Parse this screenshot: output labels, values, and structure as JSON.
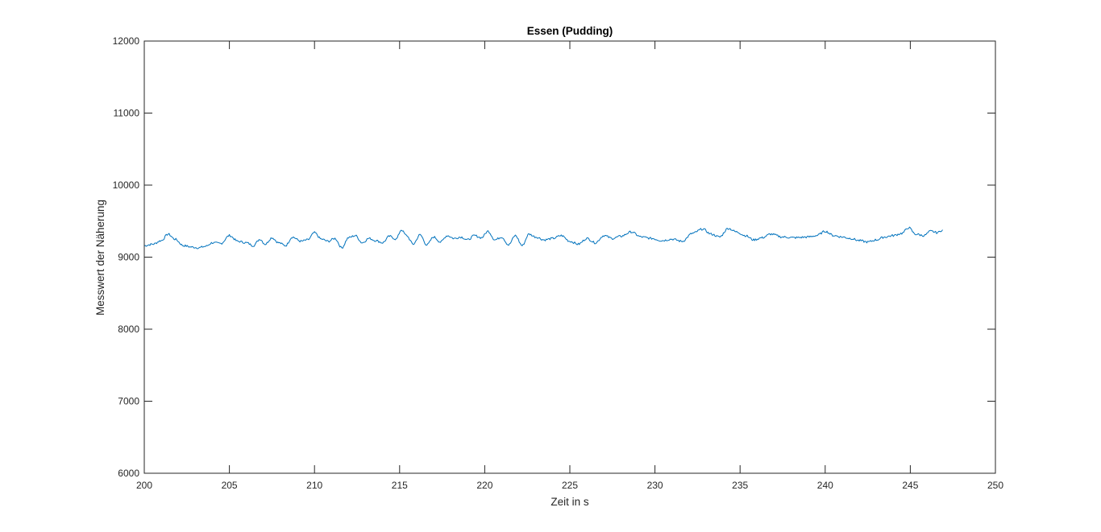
{
  "chart_data": {
    "type": "line",
    "title": "Essen (Pudding)",
    "xlabel": "Zeit in s",
    "ylabel": "Messwert der Näherung",
    "xlim": [
      200,
      250
    ],
    "ylim": [
      6000,
      12000
    ],
    "xticks": [
      200,
      205,
      210,
      215,
      220,
      225,
      230,
      235,
      240,
      245,
      250
    ],
    "yticks": [
      6000,
      7000,
      8000,
      9000,
      10000,
      11000,
      12000
    ],
    "grid": false,
    "legend": "none",
    "line_color": "#0072BD",
    "series": [
      {
        "x": [
          200.0,
          200.5,
          201.0,
          201.4,
          201.8,
          202.3,
          202.8,
          203.2,
          203.6,
          204.0,
          204.5,
          205.0,
          205.5,
          206.0,
          206.4,
          206.8,
          207.1,
          207.5,
          207.9,
          208.3,
          208.7,
          209.2,
          209.6,
          210.0,
          210.4,
          210.8,
          211.2,
          211.6,
          212.0,
          212.4,
          212.8,
          213.2,
          213.6,
          214.0,
          214.4,
          214.8,
          215.1,
          215.4,
          215.8,
          216.2,
          216.6,
          217.0,
          217.4,
          217.8,
          218.2,
          218.6,
          219.0,
          219.4,
          219.8,
          220.2,
          220.6,
          221.0,
          221.4,
          221.8,
          222.2,
          222.6,
          223.0,
          223.5,
          224.0,
          224.5,
          225.0,
          225.5,
          226.0,
          226.5,
          227.0,
          227.5,
          228.0,
          228.6,
          229.2,
          229.8,
          230.4,
          231.0,
          231.6,
          232.2,
          232.8,
          233.3,
          233.8,
          234.3,
          234.8,
          235.3,
          235.8,
          236.3,
          236.8,
          237.5,
          238.2,
          239.0,
          239.5,
          240.0,
          240.5,
          241.0,
          241.5,
          242.0,
          242.5,
          243.0,
          243.5,
          244.0,
          244.5,
          244.9,
          245.3,
          245.8,
          246.2,
          246.6,
          246.9
        ],
        "y": [
          9160,
          9180,
          9230,
          9320,
          9250,
          9160,
          9140,
          9130,
          9150,
          9200,
          9190,
          9300,
          9220,
          9200,
          9160,
          9250,
          9180,
          9270,
          9200,
          9160,
          9280,
          9220,
          9240,
          9340,
          9250,
          9220,
          9260,
          9130,
          9270,
          9300,
          9200,
          9260,
          9230,
          9200,
          9290,
          9250,
          9380,
          9300,
          9180,
          9310,
          9170,
          9280,
          9210,
          9300,
          9260,
          9280,
          9240,
          9300,
          9270,
          9360,
          9240,
          9280,
          9170,
          9300,
          9160,
          9320,
          9280,
          9240,
          9260,
          9300,
          9220,
          9180,
          9260,
          9200,
          9300,
          9260,
          9290,
          9350,
          9280,
          9260,
          9230,
          9250,
          9220,
          9330,
          9390,
          9320,
          9280,
          9400,
          9350,
          9300,
          9240,
          9270,
          9320,
          9280,
          9270,
          9280,
          9300,
          9360,
          9300,
          9280,
          9260,
          9230,
          9210,
          9240,
          9280,
          9300,
          9330,
          9410,
          9320,
          9300,
          9360,
          9340,
          9380
        ]
      }
    ]
  }
}
